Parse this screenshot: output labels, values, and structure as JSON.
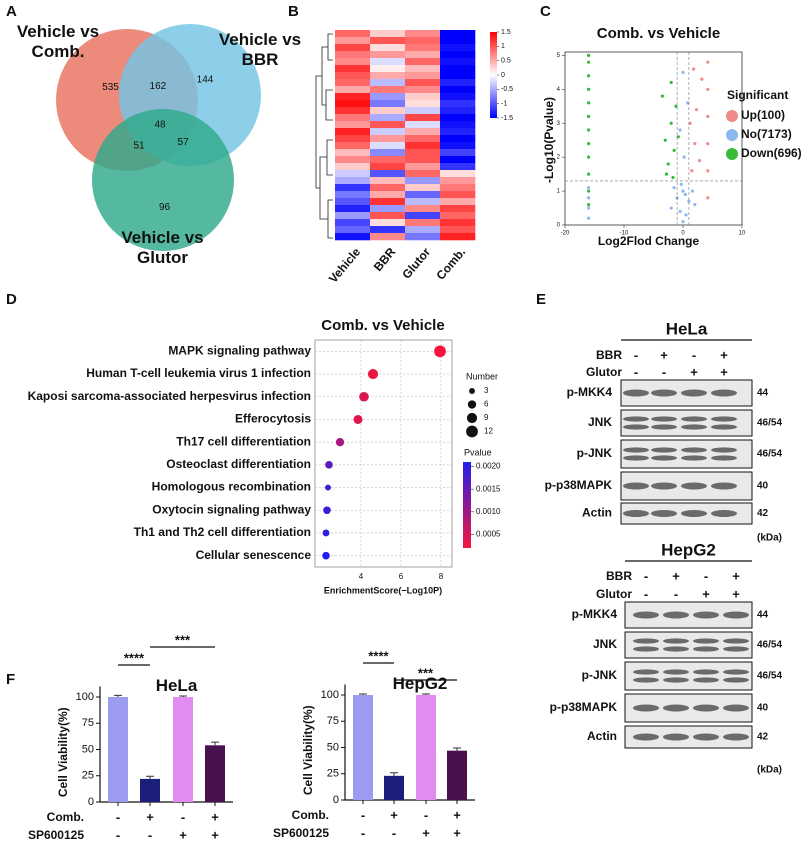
{
  "panels": [
    "A",
    "B",
    "C",
    "D",
    "E",
    "F"
  ],
  "chart_data": [
    {
      "type": "venn",
      "sets": [
        {
          "name": "Vehicle vs Comb.",
          "color": "#e8705f"
        },
        {
          "name": "Vehicle vs BBR",
          "color": "#74c4e4"
        },
        {
          "name": "Vehicle vs Glutor",
          "color": "#2ea98b"
        }
      ],
      "regions": [
        {
          "sets": [
            0
          ],
          "value": 535
        },
        {
          "sets": [
            0,
            1
          ],
          "value": 162
        },
        {
          "sets": [
            1
          ],
          "value": 144
        },
        {
          "sets": [
            0,
            1,
            2
          ],
          "value": 48
        },
        {
          "sets": [
            0,
            2
          ],
          "value": 51
        },
        {
          "sets": [
            1,
            2
          ],
          "value": 57
        },
        {
          "sets": [
            2
          ],
          "value": 96
        }
      ]
    },
    {
      "type": "heatmap",
      "columns": [
        "Vehicle",
        "BBR",
        "Glutor",
        "Comb."
      ],
      "rows": [
        [
          0.9,
          0.3,
          0.7,
          -1.5
        ],
        [
          0.6,
          1.0,
          0.9,
          -1.5
        ],
        [
          1.1,
          0.2,
          0.8,
          -1.4
        ],
        [
          0.8,
          0.6,
          0.5,
          -1.5
        ],
        [
          0.7,
          -0.2,
          0.9,
          -1.4
        ],
        [
          1.2,
          0.1,
          0.4,
          -1.5
        ],
        [
          1.0,
          0.5,
          0.6,
          -1.5
        ],
        [
          0.9,
          -0.4,
          1.0,
          -1.3
        ],
        [
          0.5,
          0.8,
          0.7,
          -1.5
        ],
        [
          1.3,
          -0.6,
          0.3,
          -1.4
        ],
        [
          1.4,
          -0.8,
          0.2,
          -1.2
        ],
        [
          1.2,
          0.3,
          -0.3,
          -1.3
        ],
        [
          0.8,
          -0.5,
          1.1,
          -1.5
        ],
        [
          0.6,
          1.0,
          -0.2,
          -1.4
        ],
        [
          1.3,
          -0.3,
          0.5,
          -1.3
        ],
        [
          1.1,
          0.6,
          0.9,
          -1.5
        ],
        [
          0.9,
          -0.2,
          1.2,
          -1.4
        ],
        [
          0.4,
          -0.7,
          1.0,
          -1.1
        ],
        [
          0.7,
          0.9,
          1.0,
          -1.5
        ],
        [
          0.3,
          1.1,
          0.6,
          -1.2
        ],
        [
          -0.3,
          -1.0,
          0.9,
          0.2
        ],
        [
          -0.5,
          0.4,
          -0.6,
          0.6
        ],
        [
          -1.2,
          0.9,
          0.3,
          0.8
        ],
        [
          -0.8,
          0.5,
          -0.9,
          1.0
        ],
        [
          -1.0,
          1.2,
          -0.4,
          0.5
        ],
        [
          -1.3,
          -0.6,
          0.7,
          1.1
        ],
        [
          -0.6,
          1.0,
          -1.1,
          0.9
        ],
        [
          -1.1,
          0.2,
          0.8,
          1.2
        ],
        [
          -0.9,
          -1.2,
          -0.5,
          1.0
        ],
        [
          -1.4,
          0.7,
          -0.8,
          1.3
        ]
      ],
      "zlim": [
        -1.5,
        1.5
      ],
      "zticks": [
        1.5,
        1,
        0.5,
        0,
        -0.5,
        -1,
        -1.5
      ]
    },
    {
      "type": "scatter",
      "title": "Comb. vs Vehicle",
      "xlabel": "Log2Flod Change",
      "ylabel": "-Log10(Pvalue)",
      "legend_title": "Significant",
      "xlim": [
        -20,
        10
      ],
      "xticks": [
        -20,
        -10,
        0,
        10
      ],
      "ylim": [
        0,
        5.1
      ],
      "yticks": [
        0,
        1,
        2,
        3,
        4,
        5
      ],
      "hline": 1.3,
      "vlines": [
        -1,
        1
      ],
      "series": [
        {
          "name": "Up(100)",
          "color": "#f08a8a",
          "x": [
            4.2,
            4.2,
            4.2,
            4.2,
            4.2,
            4.2,
            1.5,
            2,
            1.2,
            2.8,
            3.2,
            1.8,
            2.3
          ],
          "values": [
            0.8,
            1.6,
            2.4,
            3.2,
            4,
            4.8,
            1.6,
            2.4,
            3,
            1.9,
            4.3,
            4.6,
            3.4
          ]
        },
        {
          "name": "No(7173)",
          "color": "#8cb8ee",
          "x": [
            -16,
            -16,
            -16,
            -16,
            0,
            -0.5,
            0.5,
            -1,
            1,
            0,
            -0.3,
            0.4,
            -2,
            2,
            -1.5,
            1.6,
            0.2,
            -0.5,
            0.8,
            0
          ],
          "values": [
            0.2,
            0.5,
            0.8,
            1.1,
            0.1,
            0.4,
            0.3,
            0.8,
            0.7,
            1.0,
            1.2,
            0.9,
            0.5,
            0.6,
            1.1,
            1.0,
            2.0,
            2.8,
            3.6,
            4.5
          ]
        },
        {
          "name": "Down(696)",
          "color": "#35bb35",
          "x": [
            -16,
            -16,
            -16,
            -16,
            -16,
            -16,
            -16,
            -16,
            -16,
            -16,
            -16,
            -16,
            -3,
            -2.5,
            -2,
            -1.5,
            -2.8,
            -1.2,
            -2,
            -0.8,
            -3.5,
            -1.7
          ],
          "values": [
            0.6,
            1.0,
            1.5,
            2,
            2.4,
            2.8,
            3.2,
            3.6,
            4,
            4.4,
            4.8,
            5.0,
            2.5,
            1.8,
            3,
            2.2,
            1.5,
            3.5,
            4.2,
            2.6,
            3.8,
            1.4
          ]
        }
      ]
    },
    {
      "type": "dot",
      "title": "Comb. vs Vehicle",
      "xlabel": "EnrichmentScore(−Log10P)",
      "categories": [
        "MAPK signaling pathway",
        "Human T-cell leukemia virus 1 infection",
        "Kaposi sarcoma-associated herpesvirus infection",
        "Efferocytosis",
        "Th17 cell differentiation",
        "Osteoclast differentiation",
        "Homologous recombination",
        "Oxytocin signaling pathway",
        "Th1 and Th2 cell differentiation",
        "Cellular senescence"
      ],
      "values": [
        7.95,
        4.6,
        4.15,
        3.85,
        2.95,
        2.4,
        2.35,
        2.3,
        2.25,
        2.25
      ],
      "sizes": [
        12,
        9,
        8,
        7,
        6,
        5,
        3,
        5,
        4,
        5
      ],
      "pvalues": [
        0.0002,
        0.0003,
        0.0004,
        0.0004,
        0.0009,
        0.0016,
        0.0019,
        0.0019,
        0.002,
        0.0021
      ],
      "xlim": [
        1.7,
        8.55
      ],
      "xticks": [
        4,
        6,
        8
      ],
      "size_legend_title": "Number",
      "size_ticks": [
        3,
        6,
        9,
        12
      ],
      "color_legend_title": "Pvalue",
      "clim": [
        0.0002,
        0.0021
      ],
      "color_ticks": [
        {
          "value": 0.002,
          "label": "0.0020"
        },
        0.0015,
        {
          "value": 0.001,
          "label": "0.0010"
        },
        0.0005
      ]
    },
    {
      "type": "bar",
      "title": "HeLa",
      "ylabel": "Cell Viability(%)",
      "values": [
        100,
        22,
        100,
        54
      ],
      "errors": [
        1.5,
        2.5,
        1,
        3
      ],
      "colors": [
        "#9b9bf0",
        "#1c1f7a",
        "#e08cf0",
        "#4b1050"
      ],
      "ylim": [
        0,
        110
      ],
      "yticks": [
        0,
        25,
        50,
        75,
        100
      ],
      "significance": [
        {
          "label": "****",
          "bars": [
            0,
            1
          ]
        },
        {
          "label": "***",
          "bars": [
            1,
            3
          ]
        }
      ],
      "conditions": [
        {
          "name": "Comb.",
          "signs": [
            "-",
            "+",
            "-",
            "+"
          ]
        },
        {
          "name": "SP600125",
          "signs": [
            "-",
            "-",
            "+",
            "+"
          ]
        }
      ]
    },
    {
      "type": "bar",
      "title": "HepG2",
      "ylabel": "Cell Viability(%)",
      "values": [
        100,
        23,
        100,
        47
      ],
      "errors": [
        1,
        3,
        1,
        2.5
      ],
      "colors": [
        "#9b9bf0",
        "#1c1f7a",
        "#e08cf0",
        "#4b1050"
      ],
      "ylim": [
        0,
        110
      ],
      "yticks": [
        0,
        25,
        50,
        75,
        100
      ],
      "significance": [
        {
          "label": "****",
          "bars": [
            0,
            1
          ]
        },
        {
          "label": "***",
          "bars": [
            1,
            3
          ]
        }
      ],
      "conditions": [
        {
          "name": "Comb.",
          "signs": [
            "-",
            "+",
            "-",
            "+"
          ]
        },
        {
          "name": "SP600125",
          "signs": [
            "-",
            "-",
            "+",
            "+"
          ]
        }
      ]
    }
  ],
  "western_blots": [
    {
      "cell": "HeLa",
      "unit": "(kDa)",
      "treatments": [
        {
          "name": "BBR",
          "signs": [
            "-",
            "+",
            "-",
            "+"
          ]
        },
        {
          "name": "Glutor",
          "signs": [
            "-",
            "-",
            "+",
            "+"
          ]
        }
      ],
      "bands": [
        {
          "name": "p-MKK4",
          "kda": 44
        },
        {
          "name": "JNK",
          "kda": "46/54"
        },
        {
          "name": "p-JNK",
          "kda": "46/54"
        },
        {
          "name": "p-p38MAPK",
          "kda": 40
        },
        {
          "name": "Actin",
          "kda": 42
        }
      ]
    },
    {
      "cell": "HepG2",
      "unit": "(kDa)",
      "treatments": [
        {
          "name": "BBR",
          "signs": [
            "-",
            "+",
            "-",
            "+"
          ]
        },
        {
          "name": "Glutor",
          "signs": [
            "-",
            "-",
            "+",
            "+"
          ]
        }
      ],
      "bands": [
        {
          "name": "p-MKK4",
          "kda": 44
        },
        {
          "name": "JNK",
          "kda": "46/54"
        },
        {
          "name": "p-JNK",
          "kda": "46/54"
        },
        {
          "name": "p-p38MAPK",
          "kda": 40
        },
        {
          "name": "Actin",
          "kda": 42
        }
      ]
    }
  ]
}
